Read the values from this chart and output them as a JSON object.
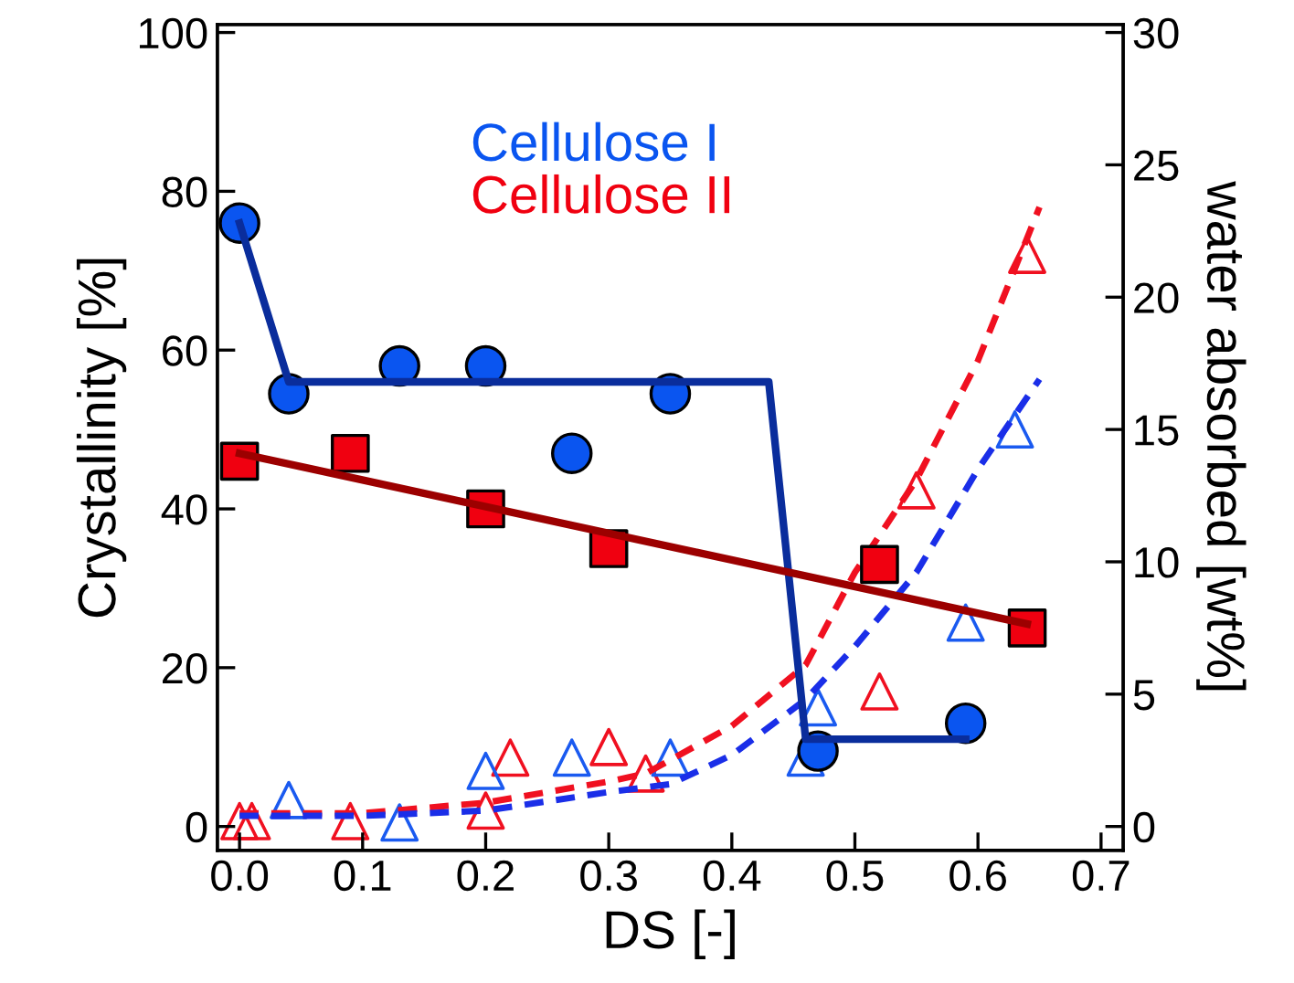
{
  "chart_data": {
    "type": "scatter",
    "xlabel": "DS [-]",
    "ylabel": "Crystallinity [%]",
    "y2label": "water absorbed [wt%]",
    "xlim": [
      -0.018,
      0.718
    ],
    "xticks": [
      {
        "value": 0,
        "label": "0.0"
      },
      0.1,
      0.2,
      0.3,
      0.4,
      0.5,
      0.6,
      0.7
    ],
    "ylim": [
      -3,
      101
    ],
    "yticks": [
      0,
      20,
      40,
      60,
      80,
      100
    ],
    "y2lim": [
      -0.9,
      30.3
    ],
    "y2ticks": [
      0,
      5,
      10,
      15,
      20,
      25,
      30
    ],
    "grid": false,
    "legend": "top",
    "series": [
      {
        "type": "line",
        "color": "#0a2d9c",
        "marker": "none",
        "line_style": "solid",
        "x": [
          0,
          0.04,
          0.43,
          0.46,
          0.59
        ],
        "values": [
          76,
          56,
          56,
          11,
          11
        ]
      },
      {
        "type": "line",
        "color": "#9c0000",
        "marker": "none",
        "line_style": "solid",
        "x": [
          0,
          0.64
        ],
        "values": [
          47,
          25.5
        ]
      },
      {
        "type": "line",
        "axis": "y2",
        "color": "#f01020",
        "marker": "none",
        "line_style": "dashed",
        "x": [
          0,
          0.1,
          0.2,
          0.3,
          0.33,
          0.4,
          0.46,
          0.5,
          0.55,
          0.6,
          0.65
        ],
        "values": [
          0.5,
          0.5,
          0.9,
          1.7,
          2.0,
          3.8,
          6.1,
          9.6,
          13.1,
          17.6,
          23.4
        ]
      },
      {
        "type": "line",
        "axis": "y2",
        "color": "#1a2ee8",
        "marker": "none",
        "line_style": "dashed",
        "x": [
          0,
          0.1,
          0.2,
          0.3,
          0.35,
          0.4,
          0.46,
          0.5,
          0.55,
          0.6,
          0.65
        ],
        "values": [
          0.4,
          0.4,
          0.6,
          1.3,
          1.6,
          2.7,
          4.8,
          6.8,
          9.6,
          13.5,
          16.9
        ]
      },
      {
        "axis": "y2",
        "color": "#f01020",
        "marker": "triangle",
        "x": [
          0,
          0.01,
          0.09,
          0.2,
          0.22,
          0.3,
          0.33,
          0.52,
          0.55,
          0.64
        ],
        "values": [
          0.2,
          0.2,
          0.2,
          0.6,
          2.6,
          3.0,
          2.0,
          5.1,
          12.7,
          21.6
        ]
      },
      {
        "axis": "y2",
        "color": "#1a5af0",
        "marker": "triangle",
        "x": [
          0.04,
          0.13,
          0.2,
          0.27,
          0.35,
          0.46,
          0.47,
          0.59,
          0.63
        ],
        "values": [
          1.0,
          0.15,
          2.1,
          2.6,
          2.6,
          2.6,
          4.5,
          7.7,
          15
        ]
      },
      {
        "name": "Cellulose I",
        "color": "#0a55f0",
        "marker": "circle",
        "x": [
          0,
          0.04,
          0.13,
          0.2,
          0.27,
          0.35,
          0.47,
          0.59
        ],
        "values": [
          76,
          54.5,
          58,
          58,
          47,
          54.5,
          9.5,
          13
        ]
      },
      {
        "name": "Cellulose II",
        "color": "#f00010",
        "marker": "square",
        "x": [
          0,
          0.09,
          0.2,
          0.3,
          0.52,
          0.64
        ],
        "values": [
          46,
          47,
          40,
          35,
          33,
          25
        ]
      }
    ]
  }
}
